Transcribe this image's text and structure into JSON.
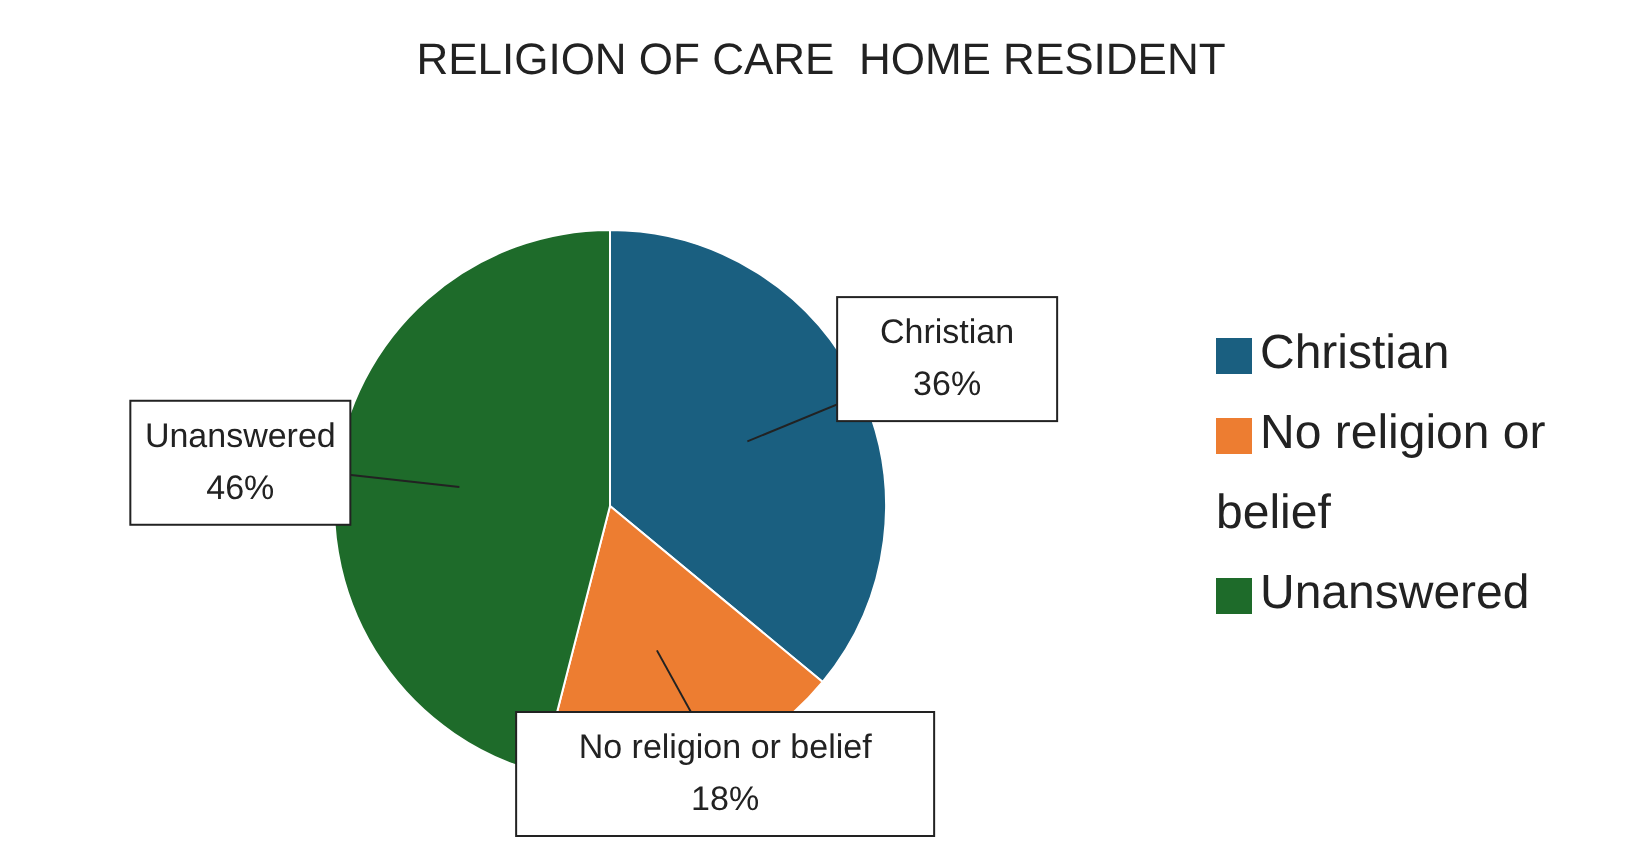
{
  "chart_data": {
    "type": "pie",
    "title": "RELIGION OF CARE  HOME RESIDENT",
    "categories": [
      "Christian",
      "No religion or belief",
      "Unanswered"
    ],
    "values": [
      36,
      18,
      46
    ],
    "colors": [
      "#1a5f80",
      "#ed7d31",
      "#1e6b2a"
    ],
    "value_labels": [
      "36%",
      "18%",
      "46%"
    ],
    "legend": "right"
  }
}
